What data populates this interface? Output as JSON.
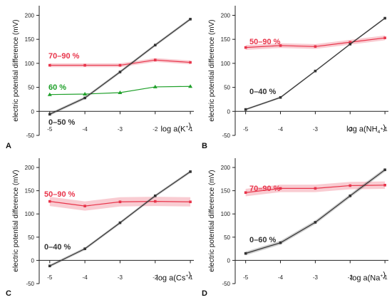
{
  "chart_data": [
    {
      "type": "line",
      "panel": "A",
      "xlabel": "log a(K⁺)",
      "ylabel": "electric potential difference (mV)",
      "xlim": [
        -5.3,
        -0.9
      ],
      "ylim": [
        -50,
        220
      ],
      "xticks": [
        -5,
        -4,
        -3,
        -2,
        -1
      ],
      "yticks": [
        -50,
        0,
        50,
        100,
        150,
        200
      ],
      "x": [
        -5,
        -4,
        -3,
        -2,
        -1
      ],
      "series": [
        {
          "name": "70–90 %",
          "color": "#e8344a",
          "values": [
            96,
            96,
            96,
            107,
            102
          ],
          "band": 4
        },
        {
          "name": "60 %",
          "color": "#1fa02a",
          "values": [
            35,
            36,
            39,
            51,
            52
          ],
          "band": 0
        },
        {
          "name": "0–50 %",
          "color": "#333333",
          "values": [
            -6,
            28,
            82,
            138,
            192
          ],
          "band": 3
        }
      ]
    },
    {
      "type": "line",
      "panel": "B",
      "xlabel": "log a(NH₄⁺)",
      "ylabel": "electric potential difference (mV)",
      "xlim": [
        -5.3,
        -0.9
      ],
      "ylim": [
        -50,
        220
      ],
      "xticks": [
        -5,
        -4,
        -3,
        -2,
        -1
      ],
      "yticks": [
        -50,
        0,
        50,
        100,
        150,
        200
      ],
      "x": [
        -5,
        -4,
        -3,
        -2,
        -1
      ],
      "series": [
        {
          "name": "50–90 %",
          "color": "#e8344a",
          "values": [
            133,
            137,
            135,
            144,
            153
          ],
          "band": 5
        },
        {
          "name": "0–40 %",
          "color": "#333333",
          "values": [
            4,
            29,
            84,
            140,
            194
          ],
          "band": 2
        }
      ]
    },
    {
      "type": "line",
      "panel": "C",
      "xlabel": "log a(Cs⁺)",
      "ylabel": "electric potential difference (mV)",
      "xlim": [
        -5.3,
        -0.9
      ],
      "ylim": [
        -50,
        220
      ],
      "xticks": [
        -5,
        -4,
        -3,
        -2,
        -1
      ],
      "yticks": [
        -50,
        0,
        50,
        100,
        150,
        200
      ],
      "x": [
        -5,
        -4,
        -3,
        -2,
        -1
      ],
      "series": [
        {
          "name": "50–90 %",
          "color": "#e8344a",
          "values": [
            127,
            117,
            126,
            127,
            126
          ],
          "band": 10
        },
        {
          "name": "0–40 %",
          "color": "#333333",
          "values": [
            -12,
            25,
            81,
            139,
            191
          ],
          "band": 3
        }
      ]
    },
    {
      "type": "line",
      "panel": "D",
      "xlabel": "log a(Na⁺)",
      "ylabel": "electric potential difference (mV)",
      "xlim": [
        -5.3,
        -0.9
      ],
      "ylim": [
        -50,
        220
      ],
      "xticks": [
        -5,
        -4,
        -3,
        -2,
        -1
      ],
      "yticks": [
        -50,
        0,
        50,
        100,
        150,
        200
      ],
      "x": [
        -5,
        -4,
        -3,
        -2,
        -1
      ],
      "series": [
        {
          "name": "70–90 %",
          "color": "#e8344a",
          "values": [
            146,
            155,
            155,
            161,
            162
          ],
          "band": 8
        },
        {
          "name": "0–60 %",
          "color": "#333333",
          "values": [
            15,
            38,
            82,
            139,
            195
          ],
          "band": 4
        }
      ]
    }
  ]
}
